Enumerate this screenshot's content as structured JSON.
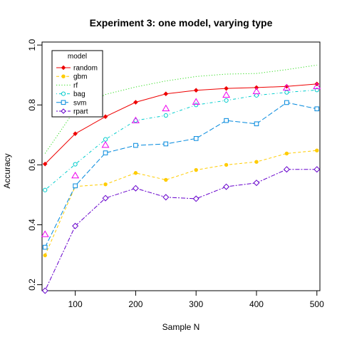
{
  "chart_data": {
    "type": "line",
    "title": "Experiment 3: one model, varying type",
    "xlabel": "Sample N",
    "ylabel": "Accuracy",
    "xlim": [
      45,
      505
    ],
    "ylim": [
      0.18,
      1.01
    ],
    "xticks": [
      100,
      200,
      300,
      400,
      500
    ],
    "yticks": [
      0.2,
      0.4,
      0.6,
      0.8,
      1.0
    ],
    "ytick_labels": [
      "0.2",
      "0.4",
      "0.6",
      "0.8",
      "1.0"
    ],
    "x": [
      50,
      100,
      150,
      200,
      250,
      300,
      350,
      400,
      450,
      500
    ],
    "grid": false,
    "legend": {
      "title": "model",
      "position": "top-left"
    },
    "series": [
      {
        "name": "random",
        "color": "#ee0000",
        "marker": "filled-diamond",
        "dash": "solid",
        "values": [
          0.603,
          0.704,
          0.761,
          0.809,
          0.837,
          0.849,
          0.855,
          0.858,
          0.862,
          0.87
        ]
      },
      {
        "name": "gbm",
        "color": "#ffcc00",
        "marker": "filled-circle",
        "dash": "dashed",
        "values": [
          0.298,
          0.528,
          0.535,
          0.573,
          0.55,
          0.583,
          0.6,
          0.61,
          0.638,
          0.648
        ]
      },
      {
        "name": "rf",
        "color": "#33dd22",
        "marker": "none",
        "dash": "dotted",
        "values": [
          0.638,
          0.785,
          0.835,
          0.86,
          0.88,
          0.895,
          0.903,
          0.905,
          0.918,
          0.933
        ]
      },
      {
        "name": "bag",
        "color": "#00cccc",
        "marker": "open-circle",
        "dash": "dotdash",
        "values": [
          0.516,
          0.602,
          0.685,
          0.748,
          0.765,
          0.8,
          0.815,
          0.832,
          0.842,
          0.85
        ]
      },
      {
        "name": "svm",
        "color": "#0088dd",
        "marker": "open-square",
        "dash": "longdash",
        "values": [
          0.325,
          0.53,
          0.64,
          0.665,
          0.67,
          0.688,
          0.748,
          0.737,
          0.808,
          0.787
        ]
      },
      {
        "name": "rpart",
        "color": "#6600cc",
        "marker": "open-diamond",
        "dash": "twodash",
        "values": [
          0.18,
          0.396,
          0.489,
          0.522,
          0.492,
          0.487,
          0.527,
          0.54,
          0.585,
          0.585
        ]
      }
    ],
    "extra_markers": {
      "color": "#ee00ee",
      "marker": "open-triangle",
      "x": [
        50,
        100,
        150,
        200,
        250,
        300,
        350,
        400,
        450,
        500
      ],
      "values": [
        0.368,
        0.564,
        0.666,
        0.748,
        0.788,
        0.81,
        0.833,
        0.845,
        0.857,
        0.862
      ]
    }
  }
}
